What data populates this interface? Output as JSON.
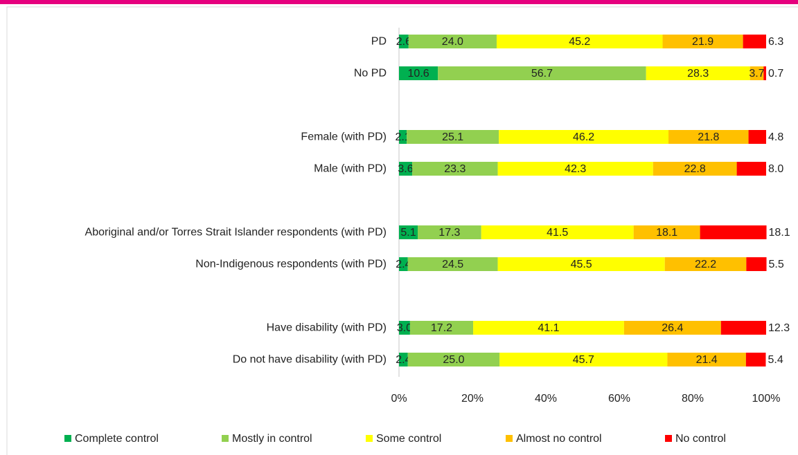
{
  "chart_data": {
    "type": "stacked-bar-horizontal",
    "categories": [
      "PD",
      "No PD",
      null,
      "Female (with PD)",
      "Male (with PD)",
      null,
      "Aboriginal and/or Torres Strait Islander respondents (with PD)",
      "Non-Indigenous respondents (with PD)",
      null,
      "Have disability (with PD)",
      "Do not have disability (with PD)"
    ],
    "series": [
      {
        "name": "Complete control",
        "color": "#00b050",
        "values": [
          2.6,
          10.6,
          null,
          2.1,
          3.6,
          null,
          5.1,
          2.4,
          null,
          3.0,
          2.4
        ],
        "value_labels": [
          "2.6",
          "10.6",
          null,
          "2.1",
          "3.6",
          null,
          "5.1",
          "2.4",
          null,
          "3.0",
          "2.4"
        ]
      },
      {
        "name": "Mostly in control",
        "color": "#92d050",
        "values": [
          24.0,
          56.7,
          null,
          25.1,
          23.3,
          null,
          17.3,
          24.5,
          null,
          17.2,
          25.0
        ],
        "value_labels": [
          "24.0",
          "56.7",
          null,
          "25.1",
          "23.3",
          null,
          "17.3",
          "24.5",
          null,
          "17.2",
          "25.0"
        ]
      },
      {
        "name": "Some control",
        "color": "#ffff00",
        "values": [
          45.2,
          28.3,
          null,
          46.2,
          42.3,
          null,
          41.5,
          45.5,
          null,
          41.1,
          45.7
        ],
        "value_labels": [
          "45.2",
          "28.3",
          null,
          "46.2",
          "42.3",
          null,
          "41.5",
          "45.5",
          null,
          "41.1",
          "45.7"
        ]
      },
      {
        "name": "Almost no control",
        "color": "#ffc000",
        "values": [
          21.9,
          3.7,
          null,
          21.8,
          22.8,
          null,
          18.1,
          22.2,
          null,
          26.4,
          21.4
        ],
        "value_labels": [
          "21.9",
          "3.7",
          null,
          "21.8",
          "22.8",
          null,
          "18.1",
          "22.2",
          null,
          "26.4",
          "21.4"
        ]
      },
      {
        "name": "No control",
        "color": "#ff0000",
        "values": [
          6.3,
          0.7,
          null,
          4.8,
          8.0,
          null,
          18.1,
          5.5,
          null,
          12.3,
          5.4
        ],
        "value_labels": [
          "6.3",
          "0.7",
          null,
          "4.8",
          "8.0",
          null,
          "18.1",
          "5.5",
          null,
          "12.3",
          "5.4"
        ]
      }
    ],
    "xlim": [
      0,
      100
    ],
    "xticks": [
      {
        "value": 0,
        "label": "0%"
      },
      {
        "value": 20,
        "label": "20%"
      },
      {
        "value": 40,
        "label": "40%"
      },
      {
        "value": 60,
        "label": "60%"
      },
      {
        "value": 80,
        "label": "80%"
      },
      {
        "value": 100,
        "label": "100%"
      }
    ],
    "legend": "bottom"
  }
}
